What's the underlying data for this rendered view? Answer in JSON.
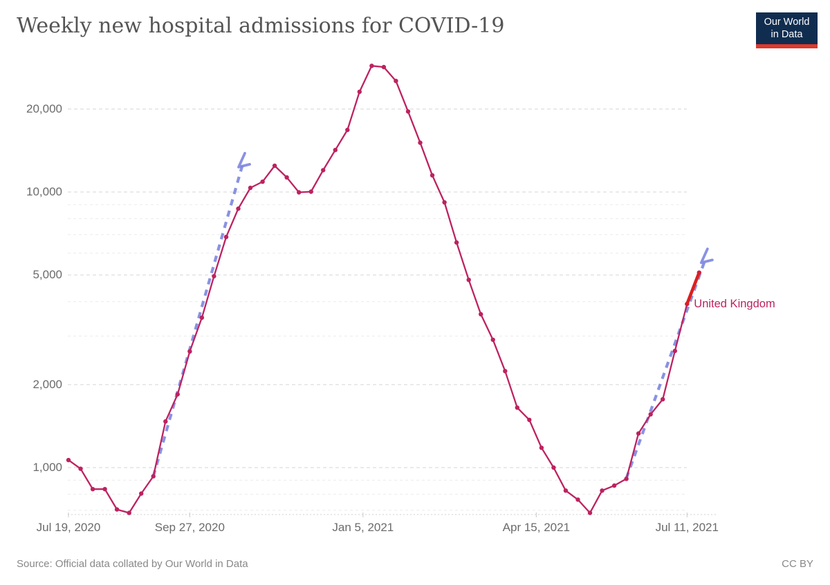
{
  "header": {
    "title": "Weekly new hospital admissions for COVID-19"
  },
  "logo": {
    "line1": "Our World",
    "line2": "in Data",
    "bg_color": "#102d50",
    "bar_color": "#dc392c"
  },
  "footer": {
    "source": "Source: Official data collated by Our World in Data",
    "license": "CC BY"
  },
  "chart_data": {
    "type": "line",
    "title": "Weekly new hospital admissions for COVID-19",
    "y_scale": "log",
    "grid": "on",
    "x_tick_labels": [
      "Jul 19, 2020",
      "Sep 27, 2020",
      "Jan 5, 2021",
      "Apr 15, 2021",
      "Jul 11, 2021"
    ],
    "x_tick_day_offsets": [
      0,
      70,
      170,
      270,
      357
    ],
    "y_tick_labels": [
      "20,000",
      "10,000",
      "5,000",
      "2,000",
      "1,000"
    ],
    "y_tick_values": [
      20000,
      10000,
      5000,
      2000,
      1000
    ],
    "y_minor_gridline_values": [
      9000,
      8000,
      7000,
      6000,
      4000,
      3000,
      900,
      800,
      700
    ],
    "y_axis_bottom_value": 675,
    "series": [
      {
        "name": "United Kingdom",
        "color": "#bd2260",
        "dates": [
          "2020-07-19",
          "2020-07-26",
          "2020-08-02",
          "2020-08-09",
          "2020-08-16",
          "2020-08-23",
          "2020-08-30",
          "2020-09-06",
          "2020-09-13",
          "2020-09-20",
          "2020-09-27",
          "2020-10-04",
          "2020-10-11",
          "2020-10-18",
          "2020-10-25",
          "2020-11-01",
          "2020-11-08",
          "2020-11-15",
          "2020-11-22",
          "2020-11-29",
          "2020-12-06",
          "2020-12-13",
          "2020-12-20",
          "2020-12-27",
          "2021-01-03",
          "2021-01-10",
          "2021-01-17",
          "2021-01-24",
          "2021-01-31",
          "2021-02-07",
          "2021-02-14",
          "2021-02-21",
          "2021-02-28",
          "2021-03-07",
          "2021-03-14",
          "2021-03-21",
          "2021-03-28",
          "2021-04-04",
          "2021-04-11",
          "2021-04-18",
          "2021-04-25",
          "2021-05-02",
          "2021-05-09",
          "2021-05-16",
          "2021-05-23",
          "2021-05-30",
          "2021-06-06",
          "2021-06-13",
          "2021-06-20",
          "2021-06-27",
          "2021-07-04",
          "2021-07-11",
          "2021-07-18"
        ],
        "values": [
          1065,
          990,
          835,
          835,
          705,
          685,
          805,
          930,
          1470,
          1845,
          2640,
          3500,
          4950,
          6870,
          8700,
          10350,
          10900,
          12450,
          11300,
          9970,
          10030,
          12000,
          14200,
          16800,
          23100,
          28700,
          28400,
          25300,
          19600,
          15100,
          11500,
          9170,
          6560,
          4800,
          3600,
          2910,
          2240,
          1650,
          1490,
          1180,
          1000,
          825,
          765,
          685,
          825,
          860,
          910,
          1330,
          1560,
          1770,
          2650,
          3925,
          5100
        ]
      }
    ],
    "highlight_segment": {
      "series": "United Kingdom",
      "from_index": 51,
      "to_index": 52,
      "color": "#dc1f1f"
    },
    "annotations": [
      {
        "type": "dashed-arrow",
        "color": "#7f89e0",
        "start": {
          "day": 49,
          "value": 930
        },
        "end": {
          "day": 101,
          "value": 12900
        }
      },
      {
        "type": "dashed-arrow",
        "color": "#7f89e0",
        "start": {
          "day": 322,
          "value": 915
        },
        "end": {
          "day": 368,
          "value": 5800
        }
      }
    ],
    "series_label": {
      "text": "United Kingdom",
      "color": "#bd2260"
    }
  }
}
